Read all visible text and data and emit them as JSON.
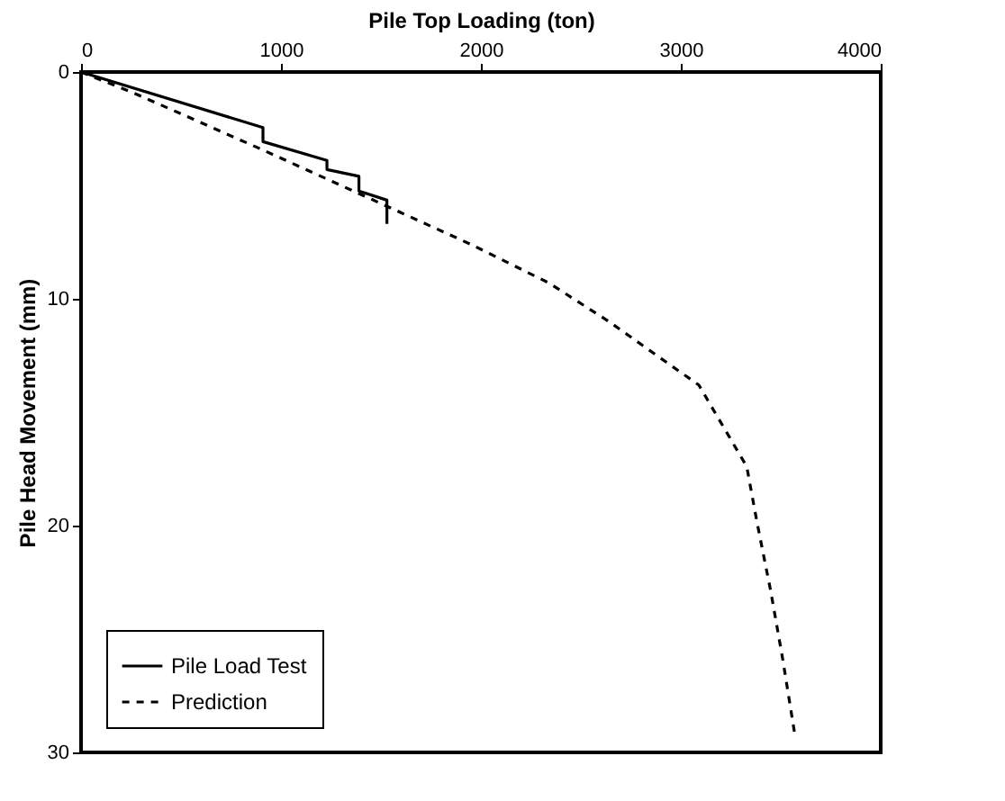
{
  "chart_data": {
    "type": "line",
    "xlabel": "Pile Top Loading (ton)",
    "ylabel": "Pile Head Movement (mm)",
    "xlim": [
      0,
      4000
    ],
    "xticks": [
      0,
      1000,
      2000,
      3000,
      4000
    ],
    "ylim": [
      30,
      0
    ],
    "yticks": [
      0,
      10,
      20,
      30
    ],
    "grid": false,
    "legend": "bottom left",
    "marker": "none",
    "series": [
      {
        "name": "Pile Load Test",
        "color": "#000000",
        "line_style": "solid",
        "x": [
          0,
          910,
          910,
          1230,
          1230,
          1390,
          1390,
          1530,
          1530
        ],
        "values": [
          0,
          2.45,
          3.07,
          3.9,
          4.3,
          4.6,
          5.25,
          5.65,
          6.7
        ]
      },
      {
        "name": "Prediction",
        "color": "#000000",
        "line_style": "dashed",
        "x": [
          0,
          270,
          900,
          1350,
          1600,
          1950,
          2340,
          2640,
          2880,
          3090,
          3210,
          3330,
          3380,
          3450,
          3510,
          3570
        ],
        "values": [
          0,
          0.95,
          3.4,
          5.2,
          6.2,
          7.6,
          9.3,
          11.0,
          12.5,
          13.8,
          15.6,
          17.4,
          19.8,
          22.9,
          25.9,
          29.2
        ]
      }
    ]
  }
}
